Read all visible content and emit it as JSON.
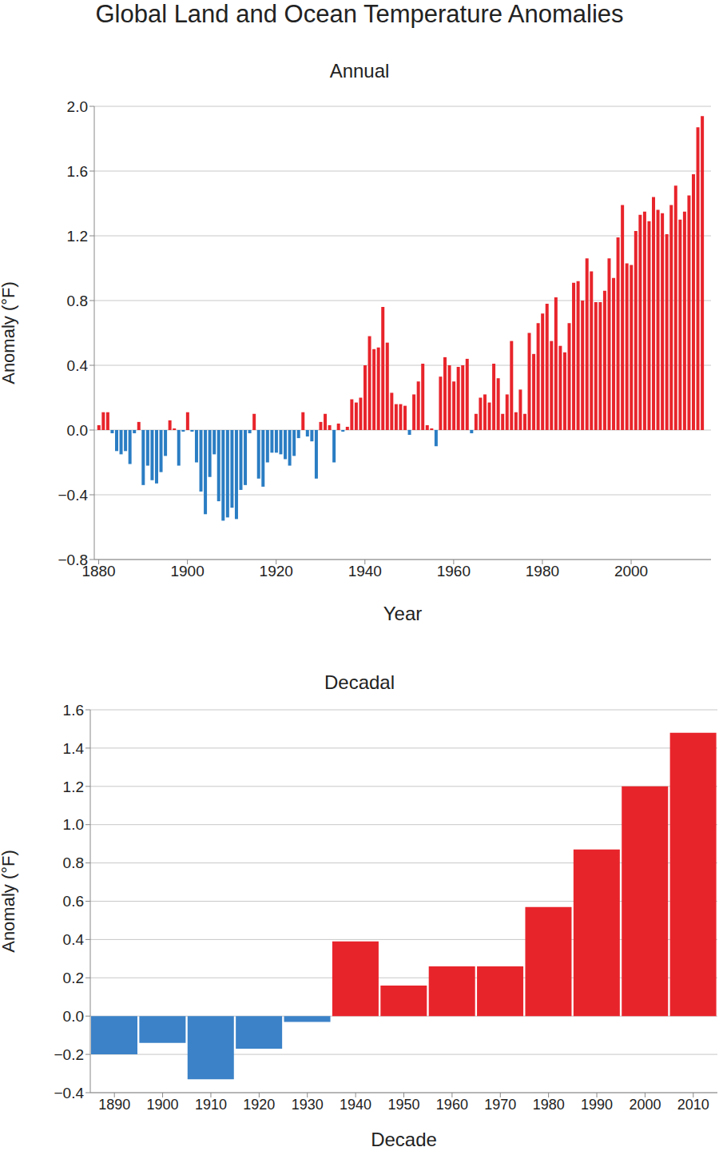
{
  "title": "Global Land and Ocean Temperature Anomalies",
  "chart_data": [
    {
      "type": "bar",
      "title": "Annual",
      "x_label": "Year",
      "y_label": "Anomaly (°F)",
      "x": [
        1880,
        1881,
        1882,
        1883,
        1884,
        1885,
        1886,
        1887,
        1888,
        1889,
        1890,
        1891,
        1892,
        1893,
        1894,
        1895,
        1896,
        1897,
        1898,
        1899,
        1900,
        1901,
        1902,
        1903,
        1904,
        1905,
        1906,
        1907,
        1908,
        1909,
        1910,
        1911,
        1912,
        1913,
        1914,
        1915,
        1916,
        1917,
        1918,
        1919,
        1920,
        1921,
        1922,
        1923,
        1924,
        1925,
        1926,
        1927,
        1928,
        1929,
        1930,
        1931,
        1932,
        1933,
        1934,
        1935,
        1936,
        1937,
        1938,
        1939,
        1940,
        1941,
        1942,
        1943,
        1944,
        1945,
        1946,
        1947,
        1948,
        1949,
        1950,
        1951,
        1952,
        1953,
        1954,
        1955,
        1956,
        1957,
        1958,
        1959,
        1960,
        1961,
        1962,
        1963,
        1964,
        1965,
        1966,
        1967,
        1968,
        1969,
        1970,
        1971,
        1972,
        1973,
        1974,
        1975,
        1976,
        1977,
        1978,
        1979,
        1980,
        1981,
        1982,
        1983,
        1984,
        1985,
        1986,
        1987,
        1988,
        1989,
        1990,
        1991,
        1992,
        1993,
        1994,
        1995,
        1996,
        1997,
        1998,
        1999,
        2000,
        2001,
        2002,
        2003,
        2004,
        2005,
        2006,
        2007,
        2008,
        2009,
        2010,
        2011,
        2012,
        2013,
        2014,
        2015,
        2016
      ],
      "values": [
        0.03,
        0.11,
        0.11,
        -0.02,
        -0.13,
        -0.15,
        -0.13,
        -0.21,
        -0.02,
        0.05,
        -0.34,
        -0.22,
        -0.31,
        -0.33,
        -0.26,
        -0.16,
        0.06,
        0.01,
        -0.22,
        -0.01,
        0.11,
        -0.01,
        -0.2,
        -0.38,
        -0.52,
        -0.29,
        -0.15,
        -0.44,
        -0.56,
        -0.54,
        -0.48,
        -0.55,
        -0.37,
        -0.34,
        -0.02,
        0.1,
        -0.3,
        -0.35,
        -0.2,
        -0.14,
        -0.14,
        -0.15,
        -0.18,
        -0.22,
        -0.16,
        -0.05,
        0.11,
        -0.04,
        -0.07,
        -0.3,
        0.05,
        0.1,
        0.03,
        -0.2,
        0.04,
        -0.01,
        0.02,
        0.19,
        0.17,
        0.2,
        0.4,
        0.58,
        0.5,
        0.51,
        0.76,
        0.54,
        0.23,
        0.16,
        0.16,
        0.15,
        -0.03,
        0.22,
        0.3,
        0.41,
        0.03,
        0.01,
        -0.1,
        0.33,
        0.45,
        0.4,
        0.3,
        0.39,
        0.4,
        0.44,
        -0.02,
        0.1,
        0.2,
        0.22,
        0.17,
        0.41,
        0.32,
        0.1,
        0.22,
        0.55,
        0.11,
        0.25,
        0.1,
        0.6,
        0.47,
        0.66,
        0.72,
        0.78,
        0.55,
        0.82,
        0.52,
        0.48,
        0.66,
        0.91,
        0.92,
        0.8,
        1.06,
        0.98,
        0.79,
        0.79,
        0.86,
        1.06,
        0.94,
        1.19,
        1.39,
        1.03,
        1.02,
        1.23,
        1.33,
        1.35,
        1.29,
        1.44,
        1.36,
        1.34,
        1.21,
        1.39,
        1.51,
        1.3,
        1.35,
        1.45,
        1.58,
        1.87,
        1.94
      ],
      "colors": [
        "#e8242b",
        "#e8242b",
        "#e8242b",
        "#2a7dc3",
        "#2a7dc3",
        "#2a7dc3",
        "#2a7dc3",
        "#2a7dc3",
        "#2a7dc3",
        "#e8242b",
        "#2a7dc3",
        "#2a7dc3",
        "#2a7dc3",
        "#2a7dc3",
        "#2a7dc3",
        "#2a7dc3",
        "#e8242b",
        "#e8242b",
        "#2a7dc3",
        "#2a7dc3",
        "#e8242b",
        "#2a7dc3",
        "#2a7dc3",
        "#2a7dc3",
        "#2a7dc3",
        "#2a7dc3",
        "#2a7dc3",
        "#2a7dc3",
        "#2a7dc3",
        "#2a7dc3",
        "#2a7dc3",
        "#2a7dc3",
        "#2a7dc3",
        "#2a7dc3",
        "#2a7dc3",
        "#e8242b",
        "#2a7dc3",
        "#2a7dc3",
        "#2a7dc3",
        "#2a7dc3",
        "#2a7dc3",
        "#2a7dc3",
        "#2a7dc3",
        "#2a7dc3",
        "#2a7dc3",
        "#2a7dc3",
        "#e8242b",
        "#2a7dc3",
        "#2a7dc3",
        "#2a7dc3",
        "#e8242b",
        "#e8242b",
        "#e8242b",
        "#2a7dc3",
        "#e8242b",
        "#2a7dc3",
        "#e8242b",
        "#e8242b",
        "#e8242b",
        "#e8242b",
        "#e8242b",
        "#e8242b",
        "#e8242b",
        "#e8242b",
        "#e8242b",
        "#e8242b",
        "#e8242b",
        "#e8242b",
        "#e8242b",
        "#e8242b",
        "#2a7dc3",
        "#e8242b",
        "#e8242b",
        "#e8242b",
        "#e8242b",
        "#e8242b",
        "#2a7dc3",
        "#e8242b",
        "#e8242b",
        "#e8242b",
        "#e8242b",
        "#e8242b",
        "#e8242b",
        "#e8242b",
        "#2a7dc3",
        "#e8242b",
        "#e8242b",
        "#e8242b",
        "#e8242b",
        "#e8242b",
        "#e8242b",
        "#e8242b",
        "#e8242b",
        "#e8242b",
        "#e8242b",
        "#e8242b",
        "#e8242b",
        "#e8242b",
        "#e8242b",
        "#e8242b",
        "#e8242b",
        "#e8242b",
        "#e8242b",
        "#e8242b",
        "#e8242b",
        "#e8242b",
        "#e8242b",
        "#e8242b",
        "#e8242b",
        "#e8242b",
        "#e8242b",
        "#e8242b",
        "#e8242b",
        "#e8242b",
        "#e8242b",
        "#e8242b",
        "#e8242b",
        "#e8242b",
        "#e8242b",
        "#e8242b",
        "#e8242b",
        "#e8242b",
        "#e8242b",
        "#e8242b",
        "#e8242b",
        "#e8242b",
        "#e8242b",
        "#e8242b",
        "#e8242b",
        "#e8242b",
        "#e8242b",
        "#e8242b",
        "#e8242b",
        "#e8242b",
        "#e8242b",
        "#e8242b",
        "#e8242b"
      ],
      "xlim": [
        1879,
        2018
      ],
      "xticks": [
        1880,
        1900,
        1920,
        1940,
        1960,
        1980,
        2000
      ],
      "ylim": [
        -0.8,
        2.0
      ],
      "yticks": [
        {
          "value": -0.8,
          "label": "−0.8"
        },
        {
          "value": -0.4,
          "label": "−0.4"
        },
        {
          "value": 0,
          "label": "0.0"
        },
        0.4,
        0.8,
        1.2,
        1.6,
        {
          "value": 2.0,
          "label": "2.0"
        }
      ],
      "grid": true
    },
    {
      "type": "bar",
      "title": "Decadal",
      "x_label": "Decade",
      "y_label": "Anomaly (°F)",
      "categories": [
        "1890",
        "1900",
        "1910",
        "1920",
        "1930",
        "1940",
        "1950",
        "1960",
        "1970",
        "1980",
        "1990",
        "2000",
        "2010"
      ],
      "values": [
        -0.2,
        -0.14,
        -0.33,
        -0.17,
        -0.03,
        0.39,
        0.16,
        0.26,
        0.26,
        0.57,
        0.87,
        1.2,
        1.48
      ],
      "colors": [
        "#3b82c8",
        "#3b82c8",
        "#3b82c8",
        "#3b82c8",
        "#3b82c8",
        "#e8242b",
        "#e8242b",
        "#e8242b",
        "#e8242b",
        "#e8242b",
        "#e8242b",
        "#e8242b",
        "#e8242b"
      ],
      "ylim": [
        -0.4,
        1.6
      ],
      "yticks": [
        {
          "value": -0.4,
          "label": "−0.4"
        },
        {
          "value": -0.2,
          "label": "−0.2"
        },
        {
          "value": 0,
          "label": "0.0"
        },
        0.2,
        0.4,
        0.6,
        0.8,
        {
          "value": 1.0,
          "label": "1.0"
        },
        1.2,
        1.4,
        1.6
      ],
      "grid": true
    }
  ]
}
